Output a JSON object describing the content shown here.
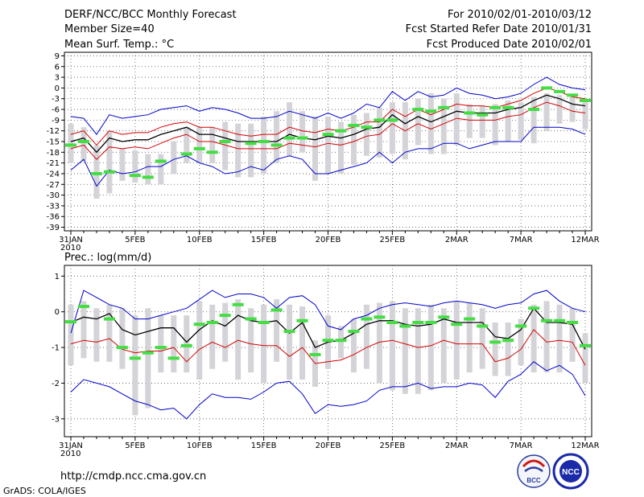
{
  "header": {
    "title": "DERF/NCC/BCC Monthly Forecast",
    "member_size": "Member Size=40",
    "variable": "Mean Surf. Temp.: °C",
    "period": "For 2010/02/01-2010/03/12",
    "fcst_started": "Fcst Started Refer Date 2010/01/31",
    "fcst_produced": "Fcst Produced Date 2010/02/01"
  },
  "footer": {
    "url": "http://cmdp.ncc.cma.gov.cn",
    "grads": "GrADS: COLA/IGES",
    "logo_bcc": "BCC",
    "logo_ncc": "NCC"
  },
  "colors": {
    "minmax": "#0000cc",
    "spread": "#d40000",
    "mean": "#000000",
    "box": "#d4d4d8",
    "obs": "#44dd44",
    "grid": "#555555"
  },
  "chart_data": [
    {
      "type": "line",
      "title": "Mean Surf. Temp.: °C",
      "x_tick_labels": [
        "31JAN\n2010",
        "5FEB",
        "10FEB",
        "15FEB",
        "20FEB",
        "25FEB",
        "2MAR",
        "7MAR",
        "12MAR"
      ],
      "ylim": [
        -40,
        10
      ],
      "y_ticks": [
        9,
        6,
        3,
        0,
        -3,
        -6,
        -9,
        -12,
        -15,
        -18,
        -21,
        -24,
        -27,
        -30,
        -33,
        -36,
        -39
      ],
      "days": 41,
      "series": [
        {
          "name": "max",
          "values": [
            -8,
            -8.5,
            -13,
            -7.5,
            -8.5,
            -8,
            -7.5,
            -6,
            -5.5,
            -5,
            -6.5,
            -5.5,
            -6,
            -7,
            -8.5,
            -8.5,
            -8,
            -6.5,
            -7.5,
            -8.5,
            -7,
            -8.5,
            -7,
            -4.5,
            -5.5,
            -1,
            -3.5,
            -1,
            -2.5,
            -2,
            0,
            -1.5,
            -2,
            -3,
            -2.5,
            -1.5,
            1,
            3,
            1,
            0,
            -0.5
          ]
        },
        {
          "name": "upper",
          "values": [
            -13,
            -12,
            -16,
            -12,
            -13,
            -12.5,
            -12.5,
            -11,
            -10,
            -9.5,
            -11,
            -11,
            -12,
            -13,
            -13.5,
            -13,
            -13,
            -11,
            -12,
            -12.5,
            -11.5,
            -12,
            -11,
            -9.5,
            -9.5,
            -6,
            -8,
            -6,
            -7.5,
            -6,
            -4.5,
            -5,
            -5,
            -5.5,
            -4.5,
            -3.5,
            -1.5,
            0,
            -1,
            -2.5,
            -3
          ]
        },
        {
          "name": "mean",
          "values": [
            -15,
            -14,
            -18,
            -14,
            -15,
            -14.5,
            -14.5,
            -13,
            -12,
            -11,
            -13,
            -13,
            -14,
            -15,
            -15,
            -15,
            -15,
            -13,
            -14,
            -14.5,
            -13.5,
            -14,
            -13,
            -11.5,
            -11,
            -7.5,
            -10,
            -8,
            -9.5,
            -8,
            -6.5,
            -7,
            -7,
            -7,
            -6,
            -5.5,
            -3.5,
            -2,
            -3,
            -4.5,
            -5
          ]
        },
        {
          "name": "lower",
          "values": [
            -17,
            -16,
            -20,
            -16.5,
            -17,
            -16.5,
            -17,
            -15.5,
            -14,
            -13,
            -15,
            -15,
            -16,
            -17,
            -17,
            -17,
            -17,
            -15.5,
            -16,
            -16.5,
            -15.5,
            -16,
            -15,
            -13.5,
            -13,
            -10,
            -12,
            -10,
            -11.5,
            -10,
            -8.5,
            -9,
            -9,
            -9,
            -8,
            -7.5,
            -5.5,
            -4,
            -5,
            -6.5,
            -7
          ]
        },
        {
          "name": "min",
          "values": [
            -23,
            -20,
            -27.5,
            -23,
            -24,
            -23.5,
            -22,
            -22,
            -20,
            -19,
            -21,
            -22,
            -24,
            -23.5,
            -22,
            -23,
            -20,
            -19,
            -20,
            -24,
            -24,
            -23,
            -22,
            -21,
            -18,
            -21,
            -18,
            -17,
            -17,
            -15.5,
            -15.5,
            -17,
            -16,
            -15,
            -15,
            -15,
            -11,
            -11,
            -11,
            -11.5,
            -13
          ]
        },
        {
          "name": "box_top",
          "values": [
            -10,
            -11,
            -16,
            -12,
            -17,
            -17.5,
            -18.5,
            -18.5,
            -15,
            -11,
            -11,
            -11,
            -9.5,
            -10,
            -10,
            -8,
            -6.5,
            -4,
            -6.5,
            -8,
            -8,
            -9.5,
            -7.5,
            -7,
            -5.5,
            -4,
            -4,
            -3,
            -1.5,
            -3,
            -1.5,
            -4.5,
            -5,
            -4.5,
            -3.5,
            -4,
            -2.5,
            -1.5,
            -2,
            -2.5,
            -4
          ]
        },
        {
          "name": "box_bottom",
          "values": [
            -21,
            -20.5,
            -31,
            -29.5,
            -26,
            -26.5,
            -27,
            -27,
            -24,
            -21,
            -21,
            -21,
            -23,
            -25,
            -25,
            -24,
            -21,
            -19,
            -18,
            -26,
            -24,
            -24,
            -21.5,
            -19,
            -19.5,
            -18.5,
            -20,
            -16,
            -18.5,
            -18.5,
            -16,
            -14,
            -14,
            -16,
            -15,
            -14.5,
            -15.5,
            -12,
            -10,
            -9.5,
            -11.5
          ]
        },
        {
          "name": "observed",
          "values": [
            -16,
            -15,
            -24,
            -23.5,
            null,
            -24.5,
            -25,
            -20.5,
            null,
            -18.5,
            -17,
            -18,
            -15,
            null,
            -15.5,
            -15,
            -16,
            -14,
            -14,
            null,
            -13,
            -12,
            -10.5,
            -11,
            -9,
            -9,
            null,
            -6,
            -6.5,
            -5.5,
            null,
            -7,
            -7.5,
            -5.5,
            -5.5,
            null,
            -6,
            0,
            -1,
            -2,
            -3.5
          ]
        }
      ]
    },
    {
      "type": "line",
      "title": "Prec.: log(mm/d)",
      "x_tick_labels": [
        "31JAN\n2010",
        "5FEB",
        "10FEB",
        "15FEB",
        "20FEB",
        "25FEB",
        "2MAR",
        "7MAR",
        "12MAR"
      ],
      "ylim": [
        -3.5,
        1.3
      ],
      "y_ticks": [
        1,
        0,
        -1,
        -2,
        -3
      ],
      "days": 41,
      "series": [
        {
          "name": "max",
          "values": [
            -0.6,
            0.6,
            0.4,
            0.2,
            0.1,
            -0.2,
            -0.2,
            -0.1,
            0,
            0.1,
            0.35,
            0.6,
            0.4,
            0.5,
            0.5,
            0.4,
            0.1,
            0.4,
            0.45,
            0.2,
            -0.4,
            -0.5,
            -0.2,
            -0.1,
            0.1,
            0.2,
            0.25,
            0.2,
            0.15,
            0.25,
            0.3,
            0.25,
            0.2,
            0.1,
            0.2,
            0.25,
            0.5,
            0.6,
            0.3,
            0.1,
            0
          ]
        },
        {
          "name": "mean",
          "values": [
            -0.3,
            -0.15,
            -0.2,
            -0.05,
            -0.5,
            -0.65,
            -0.55,
            -0.45,
            -0.45,
            -0.85,
            -0.5,
            -0.25,
            -0.4,
            -0.1,
            -0.25,
            -0.3,
            -0.25,
            -0.6,
            -0.3,
            -1.0,
            -0.85,
            -0.8,
            -0.6,
            -0.35,
            -0.25,
            -0.25,
            -0.35,
            -0.4,
            -0.35,
            -0.2,
            -0.3,
            -0.3,
            -0.3,
            -0.7,
            -0.75,
            -0.5,
            0.1,
            -0.3,
            -0.3,
            -0.35,
            -1.05
          ]
        },
        {
          "name": "lower",
          "values": [
            -0.9,
            -0.8,
            -0.85,
            -0.75,
            -1.05,
            -1.15,
            -1.1,
            -1.1,
            -1.0,
            -1.4,
            -1.05,
            -0.85,
            -1.0,
            -0.8,
            -0.9,
            -0.95,
            -0.95,
            -1.25,
            -1.0,
            -1.45,
            -1.4,
            -1.35,
            -1.2,
            -1.0,
            -0.85,
            -0.8,
            -0.9,
            -1.0,
            -0.95,
            -0.8,
            -0.9,
            -0.9,
            -0.9,
            -1.4,
            -1.3,
            -1.05,
            -0.5,
            -0.85,
            -0.8,
            -0.85,
            -1.5
          ]
        },
        {
          "name": "min",
          "values": [
            -2.25,
            -1.9,
            -2.0,
            -2.1,
            -2.3,
            -2.5,
            -2.6,
            -2.75,
            -2.7,
            -3.0,
            -2.6,
            -2.3,
            -2.4,
            -2.4,
            -2.45,
            -2.25,
            -2.0,
            -1.95,
            -2.3,
            -2.85,
            -2.6,
            -2.65,
            -2.6,
            -2.5,
            -2.2,
            -2.1,
            -2.1,
            -2.0,
            -2.15,
            -2.1,
            -2.1,
            -2.0,
            -2.05,
            -2.4,
            -1.95,
            -1.75,
            -1.4,
            -1.65,
            -1.5,
            -1.75,
            -2.35
          ]
        },
        {
          "name": "box_top",
          "values": [
            0.2,
            0.3,
            0.1,
            0.2,
            0.1,
            -0.1,
            0.1,
            -0.1,
            -0.1,
            -0.1,
            0.3,
            0.2,
            0.25,
            0.35,
            0.1,
            0.2,
            0.35,
            0.2,
            0.15,
            -0.8,
            -0.1,
            -0.4,
            -0.2,
            0.2,
            0.25,
            0.3,
            0.1,
            0.1,
            0.2,
            0.1,
            0.3,
            0.25,
            0.1,
            -0.3,
            -0.3,
            -0.2,
            0.2,
            0.3,
            0.2,
            0.1,
            -0.6
          ]
        },
        {
          "name": "box_bottom",
          "values": [
            -1.5,
            -1.3,
            -1.4,
            -1.4,
            -1.6,
            -2.9,
            -2.7,
            -1.7,
            -1.7,
            -1.7,
            -1.9,
            -1.6,
            -1.4,
            -1.9,
            -1.7,
            -2.0,
            -1.4,
            -1.9,
            -1.9,
            -2.1,
            -1.6,
            -1.3,
            -1.7,
            -1.6,
            -2.0,
            -2.2,
            -2.3,
            -2.3,
            -2.2,
            -2.0,
            -1.9,
            -1.7,
            -1.6,
            -1.8,
            -1.8,
            -1.5,
            -1.7,
            -1.7,
            -1.7,
            -1.4,
            -2.0
          ]
        },
        {
          "name": "observed",
          "values": [
            -0.28,
            0.15,
            null,
            -0.2,
            -1.0,
            -1.3,
            -1.15,
            -1.0,
            -1.3,
            -0.95,
            -0.35,
            -0.3,
            -0.1,
            0.2,
            -0.2,
            -0.3,
            0.05,
            -0.55,
            -0.25,
            -1.2,
            -0.8,
            -0.8,
            -0.55,
            -0.2,
            -0.15,
            -0.3,
            -0.4,
            -0.3,
            -0.3,
            -0.15,
            -0.35,
            -0.2,
            -0.4,
            -0.85,
            -0.8,
            -0.4,
            0.1,
            -0.25,
            -0.25,
            -0.3,
            -0.95
          ]
        }
      ]
    }
  ]
}
